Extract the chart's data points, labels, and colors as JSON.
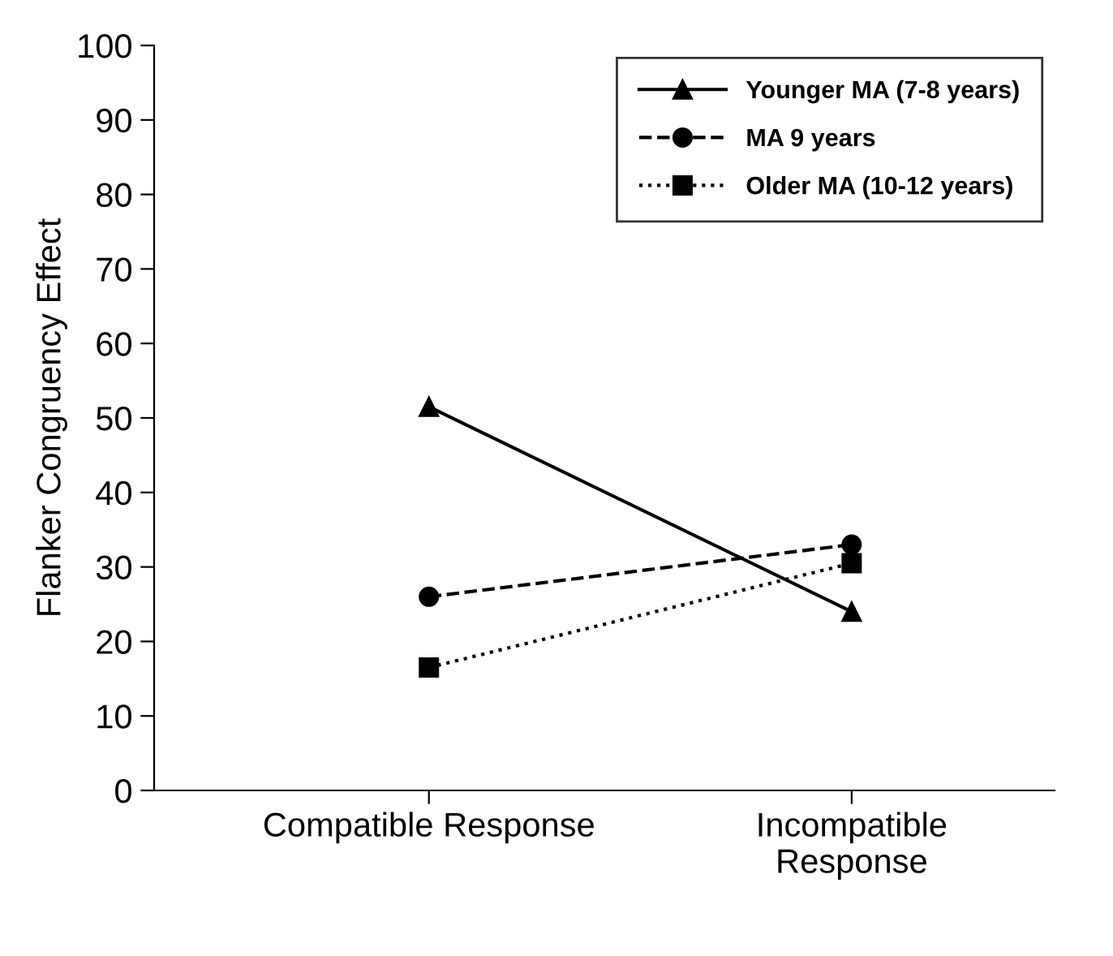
{
  "chart_data": {
    "type": "line",
    "ylabel": "Flanker Congruency Effect",
    "categories": [
      "Compatible Response",
      "Incompatible\nResponse"
    ],
    "series": [
      {
        "name": "Younger MA (7-8 years)",
        "color": "#000000",
        "values": [
          51.5,
          24
        ],
        "marker": "triangle",
        "line_style": "solid"
      },
      {
        "name": "MA 9 years",
        "color": "#010101",
        "values": [
          26,
          33
        ],
        "marker": "circle",
        "line_style": "dashed"
      },
      {
        "name": "Older MA (10-12 years)",
        "color": "#020202",
        "values": [
          16.5,
          30.5
        ],
        "marker": "square",
        "line_style": "dotted"
      }
    ],
    "ylim": [
      0,
      100
    ],
    "yticks": [
      0,
      10,
      20,
      30,
      40,
      50,
      60,
      70,
      80,
      90,
      100
    ],
    "grid": false,
    "legend": "top right"
  }
}
